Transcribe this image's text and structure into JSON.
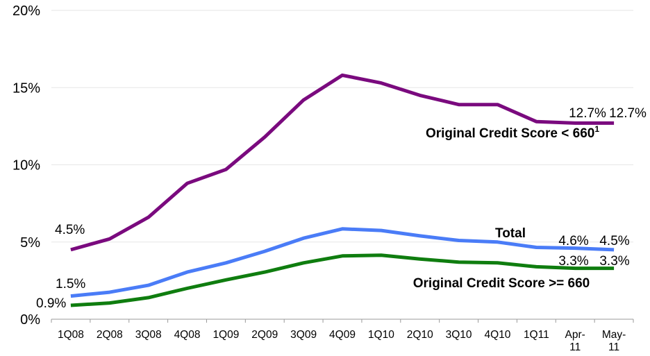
{
  "chart_data": {
    "type": "line",
    "categories": [
      "1Q08",
      "2Q08",
      "3Q08",
      "4Q08",
      "1Q09",
      "2Q09",
      "3Q09",
      "4Q09",
      "1Q10",
      "2Q10",
      "3Q10",
      "4Q10",
      "1Q11",
      "Apr-11",
      "May-11"
    ],
    "category_lines": [
      [
        "1Q08"
      ],
      [
        "2Q08"
      ],
      [
        "3Q08"
      ],
      [
        "4Q08"
      ],
      [
        "1Q09"
      ],
      [
        "2Q09"
      ],
      [
        "3Q09"
      ],
      [
        "4Q09"
      ],
      [
        "1Q10"
      ],
      [
        "2Q10"
      ],
      [
        "3Q10"
      ],
      [
        "4Q10"
      ],
      [
        "1Q11"
      ],
      [
        "Apr-",
        "11"
      ],
      [
        "May-",
        "11"
      ]
    ],
    "y_ticks": [
      "0%",
      "5%",
      "10%",
      "15%",
      "20%"
    ],
    "ylim": [
      0,
      20
    ],
    "grid": true,
    "series": [
      {
        "name": "Original Credit Score < 660",
        "name_text": "Original Credit Score < 660",
        "footnote": "1",
        "color": "#7a0a7e",
        "values": [
          4.5,
          5.2,
          6.6,
          8.8,
          9.7,
          11.8,
          14.2,
          15.8,
          15.3,
          14.5,
          13.9,
          13.9,
          12.8,
          12.7,
          12.7
        ],
        "labels": [
          {
            "index": 0,
            "text": "4.5%"
          },
          {
            "index": 13,
            "text": "12.7%"
          },
          {
            "index": 14,
            "text": "12.7%"
          }
        ]
      },
      {
        "name": "Total",
        "name_text": "Total",
        "color": "#4a7cf7",
        "values": [
          1.5,
          1.75,
          2.2,
          3.05,
          3.65,
          4.4,
          5.25,
          5.85,
          5.75,
          5.4,
          5.1,
          5.0,
          4.65,
          4.6,
          4.5
        ],
        "labels": [
          {
            "index": 0,
            "text": "1.5%"
          },
          {
            "index": 13,
            "text": "4.6%"
          },
          {
            "index": 14,
            "text": "4.5%"
          }
        ]
      },
      {
        "name": "Original Credit Score >= 660",
        "name_text": "Original Credit Score >= 660",
        "color": "#0f7d0f",
        "values": [
          0.9,
          1.05,
          1.4,
          2.0,
          2.55,
          3.05,
          3.65,
          4.1,
          4.15,
          3.9,
          3.7,
          3.65,
          3.4,
          3.3,
          3.3
        ],
        "labels": [
          {
            "index": 0,
            "text": "0.9%"
          },
          {
            "index": 13,
            "text": "3.3%"
          },
          {
            "index": 14,
            "text": "3.3%"
          }
        ]
      }
    ]
  }
}
